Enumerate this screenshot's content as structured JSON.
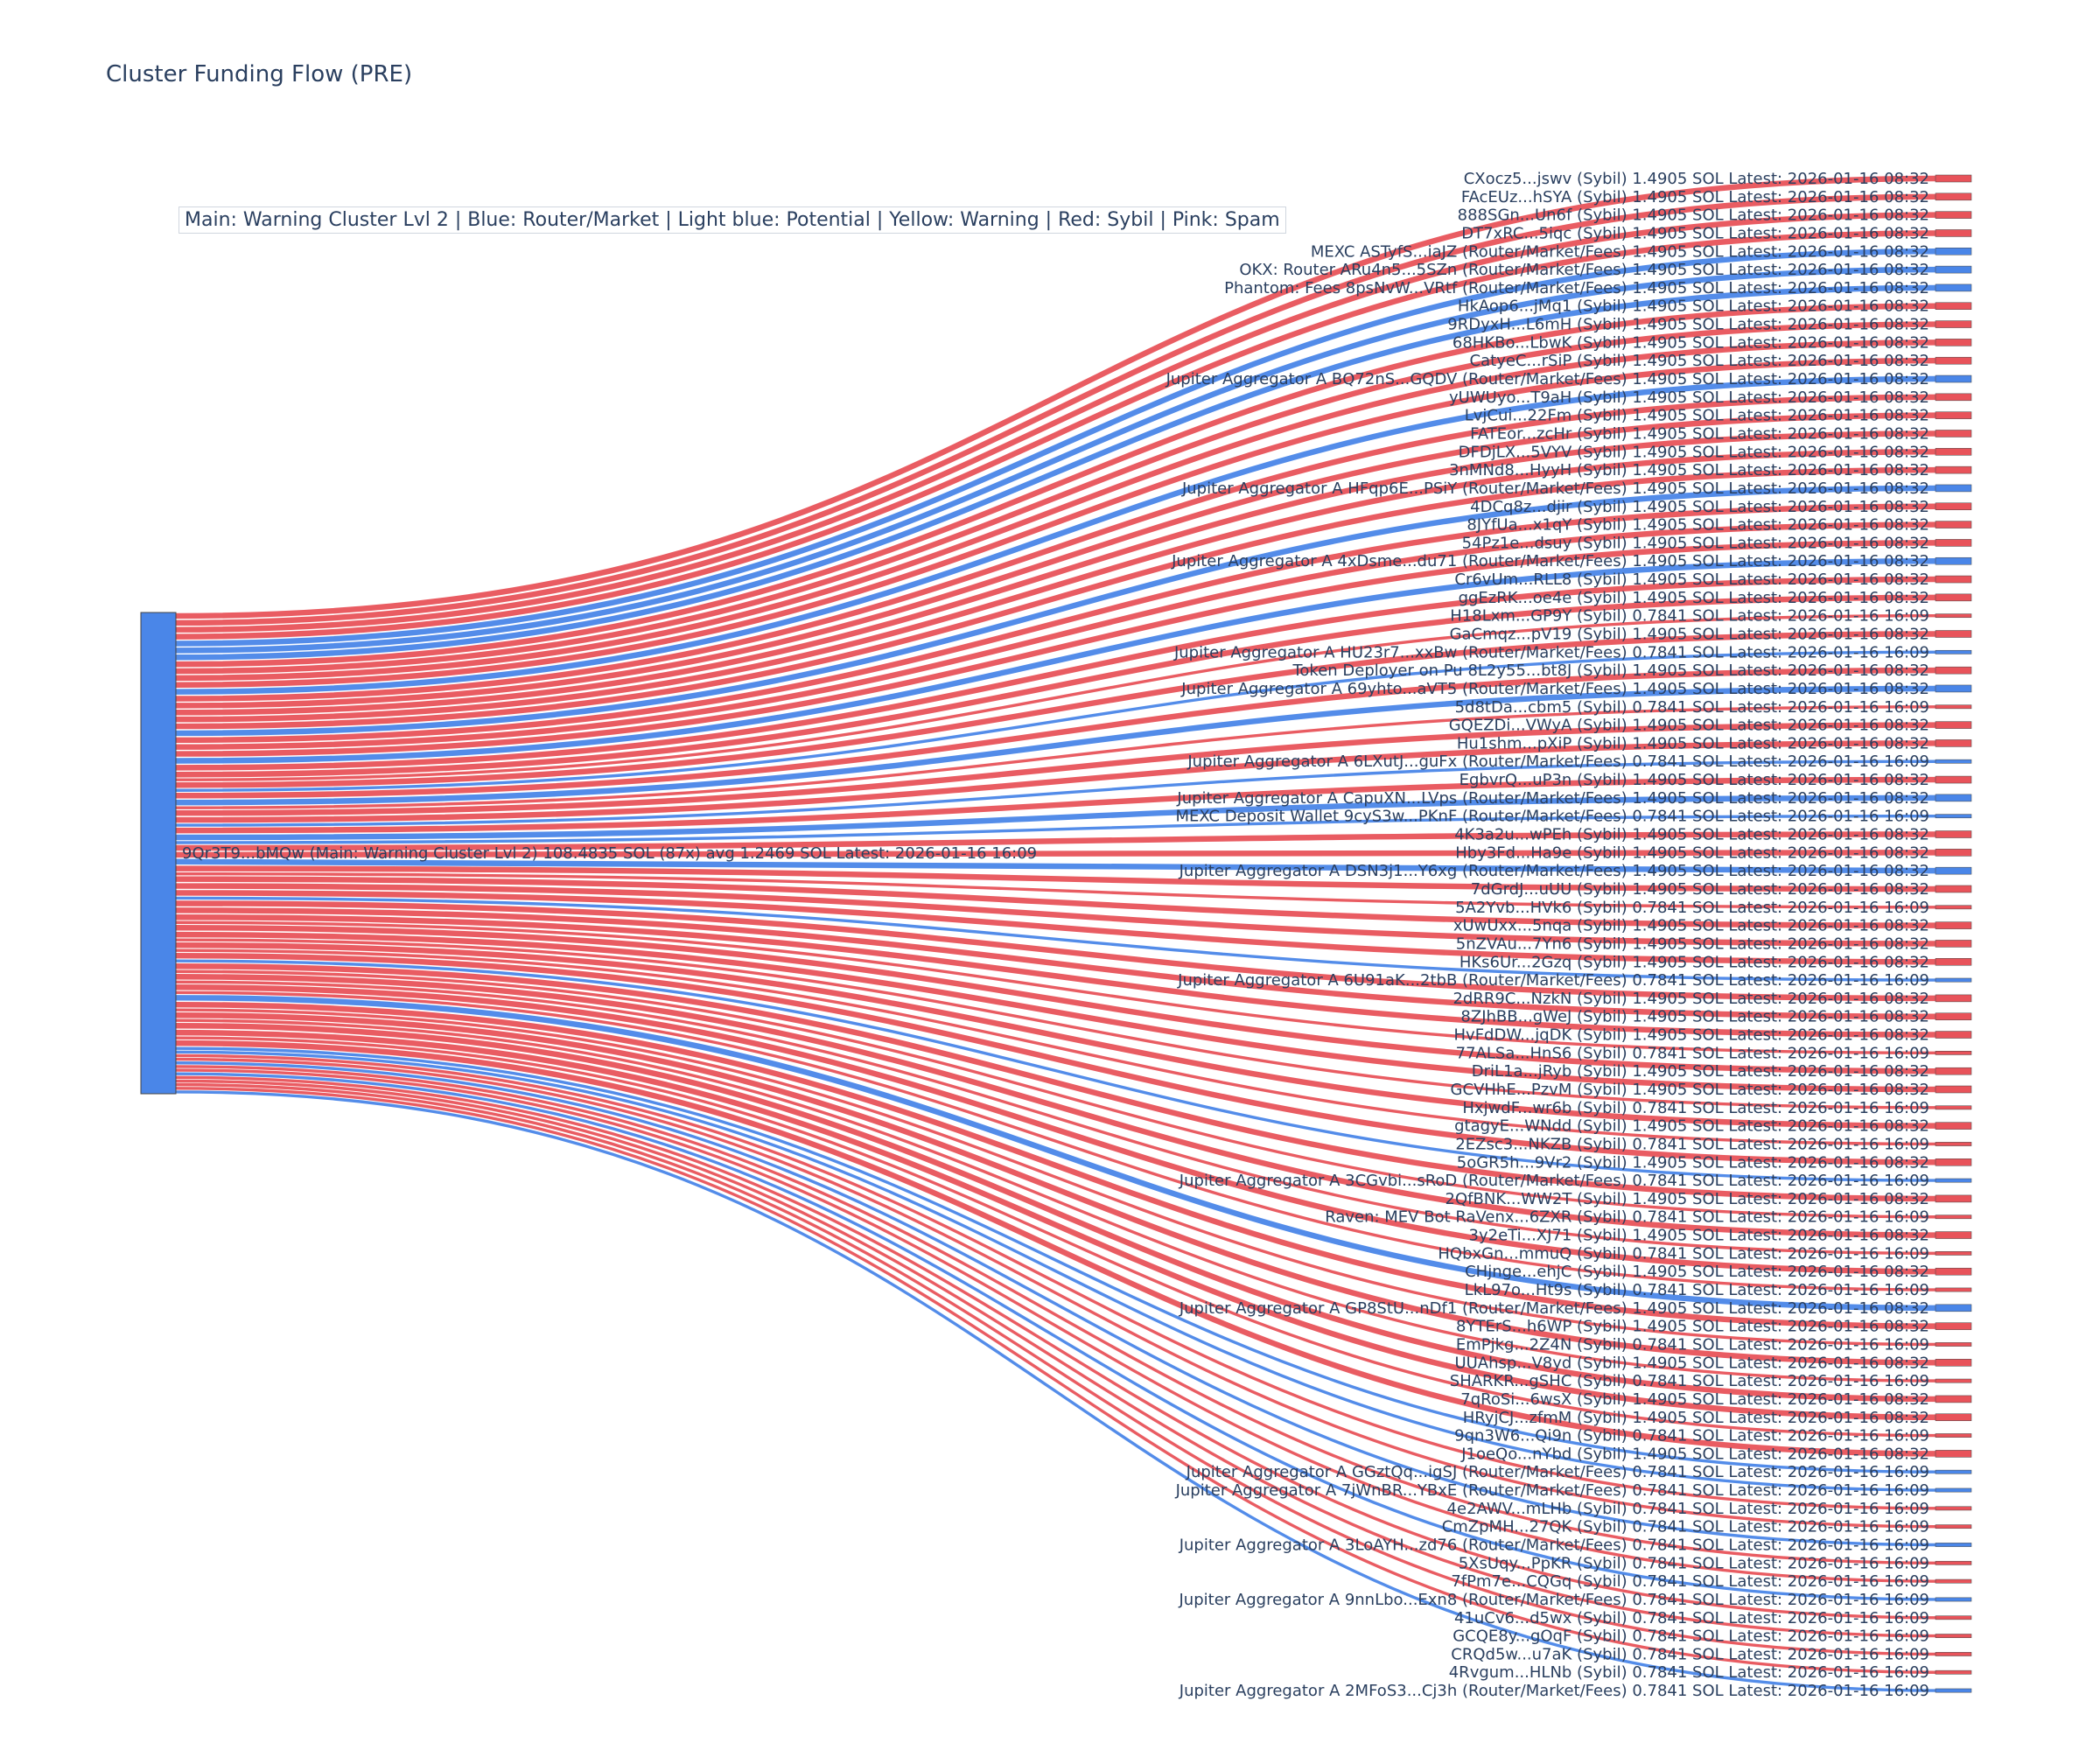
{
  "chart_data": {
    "type": "sankey",
    "title": "Cluster Funding Flow (PRE)",
    "legend_text": "Main: Warning Cluster Lvl 2  |  Blue: Router/Market | Light blue: Potential | Yellow: Warning | Red: Sybil | Pink: Spam",
    "colors": {
      "source": "#4a86e8",
      "sybil": "#e8535a",
      "router": "#4a86e8"
    },
    "source": {
      "label": "9Qr3T9...bMQw (Main: Warning Cluster Lvl 2) 108.4835 SOL (87x) avg 1.2469 SOL Latest: 2026-01-16 16:09",
      "total_sol": 108.4835,
      "count": 87
    },
    "targets": [
      {
        "label": "CXocz5...jswv (Sybil) 1.4905 SOL Latest: 2026-01-16 08:32",
        "kind": "sybil",
        "value": 1.4905
      },
      {
        "label": "FAcEUz...hSYA (Sybil) 1.4905 SOL Latest: 2026-01-16 08:32",
        "kind": "sybil",
        "value": 1.4905
      },
      {
        "label": "888SGn...Un6f (Sybil) 1.4905 SOL Latest: 2026-01-16 08:32",
        "kind": "sybil",
        "value": 1.4905
      },
      {
        "label": "DT7xRC...5iqc (Sybil) 1.4905 SOL Latest: 2026-01-16 08:32",
        "kind": "sybil",
        "value": 1.4905
      },
      {
        "label": "MEXC ASTyfS...iaJZ (Router/Market/Fees) 1.4905 SOL Latest: 2026-01-16 08:32",
        "kind": "router",
        "value": 1.4905
      },
      {
        "label": "OKX: Router ARu4n5...5SZn (Router/Market/Fees) 1.4905 SOL Latest: 2026-01-16 08:32",
        "kind": "router",
        "value": 1.4905
      },
      {
        "label": "Phantom: Fees 8psNvW...VRtf (Router/Market/Fees) 1.4905 SOL Latest: 2026-01-16 08:32",
        "kind": "router",
        "value": 1.4905
      },
      {
        "label": "HkAop6...jMq1 (Sybil) 1.4905 SOL Latest: 2026-01-16 08:32",
        "kind": "sybil",
        "value": 1.4905
      },
      {
        "label": "9RDyxH...L6mH (Sybil) 1.4905 SOL Latest: 2026-01-16 08:32",
        "kind": "sybil",
        "value": 1.4905
      },
      {
        "label": "68HKBo...LbwK (Sybil) 1.4905 SOL Latest: 2026-01-16 08:32",
        "kind": "sybil",
        "value": 1.4905
      },
      {
        "label": "CatyeC...rSiP (Sybil) 1.4905 SOL Latest: 2026-01-16 08:32",
        "kind": "sybil",
        "value": 1.4905
      },
      {
        "label": "Jupiter Aggregator A BQ72nS...GQDV (Router/Market/Fees) 1.4905 SOL Latest: 2026-01-16 08:32",
        "kind": "router",
        "value": 1.4905
      },
      {
        "label": "yUWUyo...T9aH (Sybil) 1.4905 SOL Latest: 2026-01-16 08:32",
        "kind": "sybil",
        "value": 1.4905
      },
      {
        "label": "LvjCui...22Fm (Sybil) 1.4905 SOL Latest: 2026-01-16 08:32",
        "kind": "sybil",
        "value": 1.4905
      },
      {
        "label": "FATEor...zcHr (Sybil) 1.4905 SOL Latest: 2026-01-16 08:32",
        "kind": "sybil",
        "value": 1.4905
      },
      {
        "label": "DFDjLX...5VYV (Sybil) 1.4905 SOL Latest: 2026-01-16 08:32",
        "kind": "sybil",
        "value": 1.4905
      },
      {
        "label": "3nMNd8...HyyH (Sybil) 1.4905 SOL Latest: 2026-01-16 08:32",
        "kind": "sybil",
        "value": 1.4905
      },
      {
        "label": "Jupiter Aggregator A HFqp6E...PSiY (Router/Market/Fees) 1.4905 SOL Latest: 2026-01-16 08:32",
        "kind": "router",
        "value": 1.4905
      },
      {
        "label": "4DCq8z...djir (Sybil) 1.4905 SOL Latest: 2026-01-16 08:32",
        "kind": "sybil",
        "value": 1.4905
      },
      {
        "label": "8JYfUa...x1qY (Sybil) 1.4905 SOL Latest: 2026-01-16 08:32",
        "kind": "sybil",
        "value": 1.4905
      },
      {
        "label": "54Pz1e...dsuy (Sybil) 1.4905 SOL Latest: 2026-01-16 08:32",
        "kind": "sybil",
        "value": 1.4905
      },
      {
        "label": "Jupiter Aggregator A 4xDsme...du71 (Router/Market/Fees) 1.4905 SOL Latest: 2026-01-16 08:32",
        "kind": "router",
        "value": 1.4905
      },
      {
        "label": "Cr6vUm...RLL8 (Sybil) 1.4905 SOL Latest: 2026-01-16 08:32",
        "kind": "sybil",
        "value": 1.4905
      },
      {
        "label": "ggEzRK...oe4e (Sybil) 1.4905 SOL Latest: 2026-01-16 08:32",
        "kind": "sybil",
        "value": 1.4905
      },
      {
        "label": "H18Lxm...GP9Y (Sybil) 0.7841 SOL Latest: 2026-01-16 16:09",
        "kind": "sybil",
        "value": 0.7841
      },
      {
        "label": "GaCmqz...pV19 (Sybil) 1.4905 SOL Latest: 2026-01-16 08:32",
        "kind": "sybil",
        "value": 1.4905
      },
      {
        "label": "Jupiter Aggregator A HU23r7...xxBw (Router/Market/Fees) 0.7841 SOL Latest: 2026-01-16 16:09",
        "kind": "router",
        "value": 0.7841
      },
      {
        "label": "Token Deployer on Pu 8L2y55...bt8J (Sybil) 1.4905 SOL Latest: 2026-01-16 08:32",
        "kind": "sybil",
        "value": 1.4905
      },
      {
        "label": "Jupiter Aggregator A 69yhto...aVT5 (Router/Market/Fees) 1.4905 SOL Latest: 2026-01-16 08:32",
        "kind": "router",
        "value": 1.4905
      },
      {
        "label": "5d8tDa...cbm5 (Sybil) 0.7841 SOL Latest: 2026-01-16 16:09",
        "kind": "sybil",
        "value": 0.7841
      },
      {
        "label": "GQEZDi...VWyA (Sybil) 1.4905 SOL Latest: 2026-01-16 08:32",
        "kind": "sybil",
        "value": 1.4905
      },
      {
        "label": "Hu1shm...pXiP (Sybil) 1.4905 SOL Latest: 2026-01-16 08:32",
        "kind": "sybil",
        "value": 1.4905
      },
      {
        "label": "Jupiter Aggregator A 6LXutJ...guFx (Router/Market/Fees) 0.7841 SOL Latest: 2026-01-16 16:09",
        "kind": "router",
        "value": 0.7841
      },
      {
        "label": "EgbvrQ...uP3n (Sybil) 1.4905 SOL Latest: 2026-01-16 08:32",
        "kind": "sybil",
        "value": 1.4905
      },
      {
        "label": "Jupiter Aggregator A CapuXN...LVps (Router/Market/Fees) 1.4905 SOL Latest: 2026-01-16 08:32",
        "kind": "router",
        "value": 1.4905
      },
      {
        "label": "MEXC Deposit Wallet 9cyS3w...PKnF (Router/Market/Fees) 0.7841 SOL Latest: 2026-01-16 16:09",
        "kind": "router",
        "value": 0.7841
      },
      {
        "label": "4K3a2u...wPEh (Sybil) 1.4905 SOL Latest: 2026-01-16 08:32",
        "kind": "sybil",
        "value": 1.4905
      },
      {
        "label": "Hby3Fd...Ha9e (Sybil) 1.4905 SOL Latest: 2026-01-16 08:32",
        "kind": "sybil",
        "value": 1.4905
      },
      {
        "label": "Jupiter Aggregator A DSN3j1...Y6xg (Router/Market/Fees) 1.4905 SOL Latest: 2026-01-16 08:32",
        "kind": "router",
        "value": 1.4905
      },
      {
        "label": "7dGrdJ...uUU (Sybil) 1.4905 SOL Latest: 2026-01-16 08:32",
        "kind": "sybil",
        "value": 1.4905
      },
      {
        "label": "5A2Yvb...HVk6 (Sybil) 0.7841 SOL Latest: 2026-01-16 16:09",
        "kind": "sybil",
        "value": 0.7841
      },
      {
        "label": "xUwUxx...5nqa (Sybil) 1.4905 SOL Latest: 2026-01-16 08:32",
        "kind": "sybil",
        "value": 1.4905
      },
      {
        "label": "5nZVAu...7Yn6 (Sybil) 1.4905 SOL Latest: 2026-01-16 08:32",
        "kind": "sybil",
        "value": 1.4905
      },
      {
        "label": "HKs6Ur...2Gzq (Sybil) 1.4905 SOL Latest: 2026-01-16 08:32",
        "kind": "sybil",
        "value": 1.4905
      },
      {
        "label": "Jupiter Aggregator A 6U91aK...2tbB (Router/Market/Fees) 0.7841 SOL Latest: 2026-01-16 16:09",
        "kind": "router",
        "value": 0.7841
      },
      {
        "label": "2dRR9C...NzkN (Sybil) 1.4905 SOL Latest: 2026-01-16 08:32",
        "kind": "sybil",
        "value": 1.4905
      },
      {
        "label": "8ZJhBB...gWeJ (Sybil) 1.4905 SOL Latest: 2026-01-16 08:32",
        "kind": "sybil",
        "value": 1.4905
      },
      {
        "label": "HvFdDW...jqDK (Sybil) 1.4905 SOL Latest: 2026-01-16 08:32",
        "kind": "sybil",
        "value": 1.4905
      },
      {
        "label": "77ALSa...HnS6 (Sybil) 0.7841 SOL Latest: 2026-01-16 16:09",
        "kind": "sybil",
        "value": 0.7841
      },
      {
        "label": "DriL1a...jRyb (Sybil) 1.4905 SOL Latest: 2026-01-16 08:32",
        "kind": "sybil",
        "value": 1.4905
      },
      {
        "label": "GCVHhE...PzvM (Sybil) 1.4905 SOL Latest: 2026-01-16 08:32",
        "kind": "sybil",
        "value": 1.4905
      },
      {
        "label": "HxjwdF...wr6b (Sybil) 0.7841 SOL Latest: 2026-01-16 16:09",
        "kind": "sybil",
        "value": 0.7841
      },
      {
        "label": "gtagyE...WNdd (Sybil) 1.4905 SOL Latest: 2026-01-16 08:32",
        "kind": "sybil",
        "value": 1.4905
      },
      {
        "label": "2EZsc3...NKZB (Sybil) 0.7841 SOL Latest: 2026-01-16 16:09",
        "kind": "sybil",
        "value": 0.7841
      },
      {
        "label": "5oGR5h...9Vr2 (Sybil) 1.4905 SOL Latest: 2026-01-16 08:32",
        "kind": "sybil",
        "value": 1.4905
      },
      {
        "label": "Jupiter Aggregator A 3CGvbi...sRoD (Router/Market/Fees) 0.7841 SOL Latest: 2026-01-16 16:09",
        "kind": "router",
        "value": 0.7841
      },
      {
        "label": "2QfBNK...WW2T (Sybil) 1.4905 SOL Latest: 2026-01-16 08:32",
        "kind": "sybil",
        "value": 1.4905
      },
      {
        "label": "Raven: MEV Bot RaVenx...6ZXR (Sybil) 0.7841 SOL Latest: 2026-01-16 16:09",
        "kind": "sybil",
        "value": 0.7841
      },
      {
        "label": "3y2eTi...XJ71 (Sybil) 1.4905 SOL Latest: 2026-01-16 08:32",
        "kind": "sybil",
        "value": 1.4905
      },
      {
        "label": "HQbxGn...mmuQ (Sybil) 0.7841 SOL Latest: 2026-01-16 16:09",
        "kind": "sybil",
        "value": 0.7841
      },
      {
        "label": "CHjnge...ehjC (Sybil) 1.4905 SOL Latest: 2026-01-16 08:32",
        "kind": "sybil",
        "value": 1.4905
      },
      {
        "label": "LkL97o...Ht9s (Sybil) 0.7841 SOL Latest: 2026-01-16 16:09",
        "kind": "sybil",
        "value": 0.7841
      },
      {
        "label": "Jupiter Aggregator A GP8StU...nDf1 (Router/Market/Fees) 1.4905 SOL Latest: 2026-01-16 08:32",
        "kind": "router",
        "value": 1.4905
      },
      {
        "label": "8YTErS...h6WP (Sybil) 1.4905 SOL Latest: 2026-01-16 08:32",
        "kind": "sybil",
        "value": 1.4905
      },
      {
        "label": "EmPjkg...2Z4N (Sybil) 0.7841 SOL Latest: 2026-01-16 16:09",
        "kind": "sybil",
        "value": 0.7841
      },
      {
        "label": "UUAhsp...V8yd (Sybil) 1.4905 SOL Latest: 2026-01-16 08:32",
        "kind": "sybil",
        "value": 1.4905
      },
      {
        "label": "SHARKR...gSHC (Sybil) 0.7841 SOL Latest: 2026-01-16 16:09",
        "kind": "sybil",
        "value": 0.7841
      },
      {
        "label": "7qRoSi...6wsX (Sybil) 1.4905 SOL Latest: 2026-01-16 08:32",
        "kind": "sybil",
        "value": 1.4905
      },
      {
        "label": "HRyjCJ...zfmM (Sybil) 1.4905 SOL Latest: 2026-01-16 08:32",
        "kind": "sybil",
        "value": 1.4905
      },
      {
        "label": "9qn3W6...Qi9n (Sybil) 0.7841 SOL Latest: 2026-01-16 16:09",
        "kind": "sybil",
        "value": 0.7841
      },
      {
        "label": "J1oeQo...nYbd (Sybil) 1.4905 SOL Latest: 2026-01-16 08:32",
        "kind": "sybil",
        "value": 1.4905
      },
      {
        "label": "Jupiter Aggregator A GGztQq...igSJ (Router/Market/Fees) 0.7841 SOL Latest: 2026-01-16 16:09",
        "kind": "router",
        "value": 0.7841
      },
      {
        "label": "Jupiter Aggregator A 7jWnBR...YBxE (Router/Market/Fees) 0.7841 SOL Latest: 2026-01-16 16:09",
        "kind": "router",
        "value": 0.7841
      },
      {
        "label": "4e2AWV...mLHb (Sybil) 0.7841 SOL Latest: 2026-01-16 16:09",
        "kind": "sybil",
        "value": 0.7841
      },
      {
        "label": "CmZpMH...27QK (Sybil) 0.7841 SOL Latest: 2026-01-16 16:09",
        "kind": "sybil",
        "value": 0.7841
      },
      {
        "label": "Jupiter Aggregator A 3LoAYH...zd76 (Router/Market/Fees) 0.7841 SOL Latest: 2026-01-16 16:09",
        "kind": "router",
        "value": 0.7841
      },
      {
        "label": "5XsUqy...PpKR (Sybil) 0.7841 SOL Latest: 2026-01-16 16:09",
        "kind": "sybil",
        "value": 0.7841
      },
      {
        "label": "7fPm7e...CQGq (Sybil) 0.7841 SOL Latest: 2026-01-16 16:09",
        "kind": "sybil",
        "value": 0.7841
      },
      {
        "label": "Jupiter Aggregator A 9nnLbo...Exn8 (Router/Market/Fees) 0.7841 SOL Latest: 2026-01-16 16:09",
        "kind": "router",
        "value": 0.7841
      },
      {
        "label": "41uCv6...d5wx (Sybil) 0.7841 SOL Latest: 2026-01-16 16:09",
        "kind": "sybil",
        "value": 0.7841
      },
      {
        "label": "GCQE8y...gOqF (Sybil) 0.7841 SOL Latest: 2026-01-16 16:09",
        "kind": "sybil",
        "value": 0.7841
      },
      {
        "label": "CRQd5w...u7aK (Sybil) 0.7841 SOL Latest: 2026-01-16 16:09",
        "kind": "sybil",
        "value": 0.7841
      },
      {
        "label": "4Rvgum...HLNb (Sybil) 0.7841 SOL Latest: 2026-01-16 16:09",
        "kind": "sybil",
        "value": 0.7841
      },
      {
        "label": "Jupiter Aggregator A 2MFoS3...Cj3h (Router/Market/Fees) 0.7841 SOL Latest: 2026-01-16 16:09",
        "kind": "router",
        "value": 0.7841
      }
    ]
  }
}
